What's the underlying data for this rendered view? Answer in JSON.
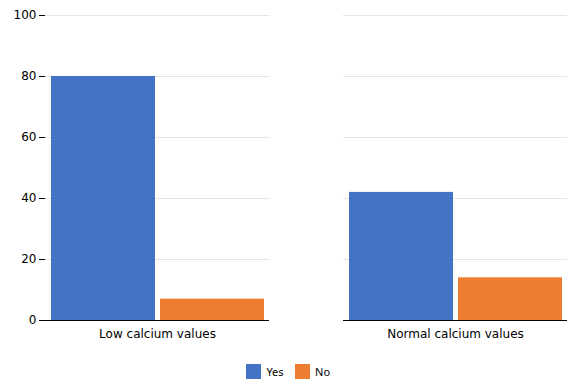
{
  "chart_data": {
    "type": "bar",
    "categories": [
      "Low calcium values",
      "Normal calcium values"
    ],
    "series": [
      {
        "name": "Yes",
        "color": "#4472C4",
        "values": [
          80,
          42
        ]
      },
      {
        "name": "No",
        "color": "#ED7D31",
        "values": [
          7,
          14
        ]
      }
    ],
    "ylim": [
      0,
      100
    ],
    "yticks": [
      0,
      20,
      40,
      60,
      80,
      100
    ],
    "grid": true,
    "legend": "bottom"
  }
}
